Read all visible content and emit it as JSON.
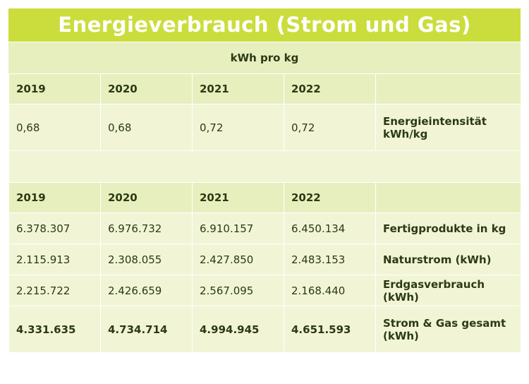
{
  "title": "Energieverbrauch (Strom und Gas)",
  "subtitle": "kWh pro kg",
  "section1": {
    "years": [
      "2019",
      "2020",
      "2021",
      "2022"
    ],
    "rows": [
      {
        "values": [
          "0,68",
          "0,68",
          "0,72",
          "0,72"
        ],
        "label_line1": "Energieintensität",
        "label_line2": "kWh/kg"
      }
    ]
  },
  "section2": {
    "years": [
      "2019",
      "2020",
      "2021",
      "2022"
    ],
    "rows": [
      {
        "values": [
          "6.378.307",
          "6.976.732",
          "6.910.157",
          "6.450.134"
        ],
        "label": "Fertigprodukte in kg"
      },
      {
        "values": [
          "2.115.913",
          "2.308.055",
          "2.427.850",
          "2.483.153"
        ],
        "label": "Naturstrom (kWh)"
      },
      {
        "values": [
          "2.215.722",
          "2.426.659",
          "2.567.095",
          "2.168.440"
        ],
        "label": "Erdgasverbrauch (kWh)"
      },
      {
        "values": [
          "4.331.635",
          "4.734.714",
          "4.994.945",
          "4.651.593"
        ],
        "label_line1": "Strom & Gas gesamt",
        "label_line2": "(kWh)"
      }
    ]
  },
  "colors": {
    "title_bg": "#cbdd3c",
    "header_bg": "#e8efbe",
    "cell_bg": "#f1f5d6",
    "text": "#2b3a14"
  }
}
